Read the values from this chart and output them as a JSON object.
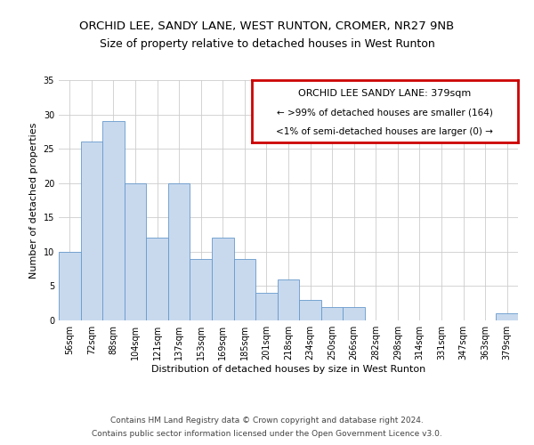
{
  "title": "ORCHID LEE, SANDY LANE, WEST RUNTON, CROMER, NR27 9NB",
  "subtitle": "Size of property relative to detached houses in West Runton",
  "xlabel": "Distribution of detached houses by size in West Runton",
  "ylabel": "Number of detached properties",
  "categories": [
    "56sqm",
    "72sqm",
    "88sqm",
    "104sqm",
    "121sqm",
    "137sqm",
    "153sqm",
    "169sqm",
    "185sqm",
    "201sqm",
    "218sqm",
    "234sqm",
    "250sqm",
    "266sqm",
    "282sqm",
    "298sqm",
    "314sqm",
    "331sqm",
    "347sqm",
    "363sqm",
    "379sqm"
  ],
  "values": [
    10,
    26,
    29,
    20,
    12,
    20,
    9,
    12,
    9,
    4,
    6,
    3,
    2,
    2,
    0,
    0,
    0,
    0,
    0,
    0,
    1
  ],
  "bar_color": "#c8d9ee",
  "bar_edge_color": "#6699cc",
  "box_text_line1": "ORCHID LEE SANDY LANE: 379sqm",
  "box_text_line2": "← >99% of detached houses are smaller (164)",
  "box_text_line3": "<1% of semi-detached houses are larger (0) →",
  "box_color": "#ffffff",
  "box_edge_color": "#cc0000",
  "ylim": [
    0,
    35
  ],
  "yticks": [
    0,
    5,
    10,
    15,
    20,
    25,
    30,
    35
  ],
  "footer_line1": "Contains HM Land Registry data © Crown copyright and database right 2024.",
  "footer_line2": "Contains public sector information licensed under the Open Government Licence v3.0.",
  "grid_color": "#cccccc",
  "background_color": "#ffffff",
  "title_fontsize": 9.5,
  "subtitle_fontsize": 9,
  "axis_label_fontsize": 8,
  "tick_fontsize": 7,
  "annotation_fontsize": 8,
  "footer_fontsize": 6.5
}
